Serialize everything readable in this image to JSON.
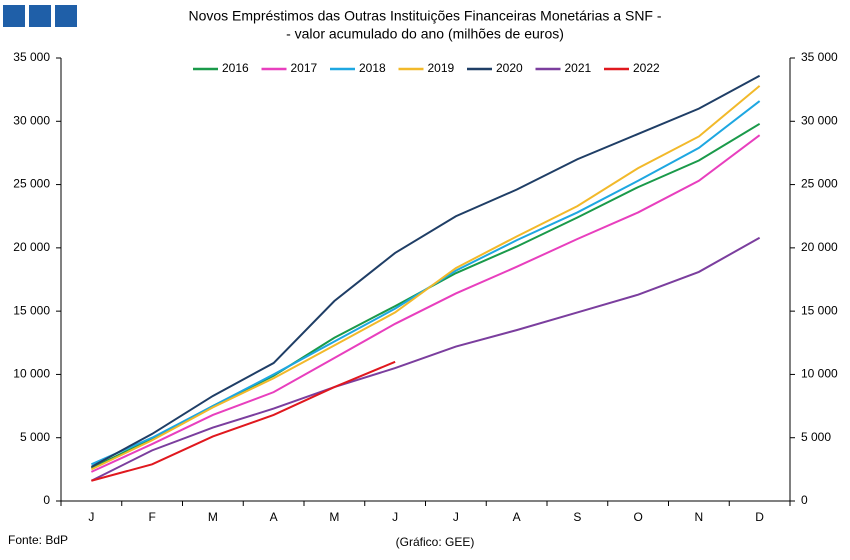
{
  "chart_data": {
    "type": "line",
    "title": "Novos Empréstimos das Outras Instituições Financeiras Monetárias a SNF -",
    "subtitle": "- valor acumulado do ano (milhões de euros)",
    "source": "Fonte: BdP",
    "credit": "(Gráfico: GEE)",
    "categories": [
      "J",
      "F",
      "M",
      "A",
      "M",
      "J",
      "J",
      "A",
      "S",
      "O",
      "N",
      "D"
    ],
    "series": [
      {
        "name": "2016",
        "color": "#1a9a4a",
        "values": [
          2600,
          4900,
          7500,
          9900,
          12900,
          15400,
          18000,
          20100,
          22400,
          24800,
          26900,
          29800
        ]
      },
      {
        "name": "2017",
        "color": "#e83fbe",
        "values": [
          2300,
          4500,
          6800,
          8600,
          11300,
          14000,
          16400,
          18500,
          20700,
          22800,
          25300,
          28900
        ]
      },
      {
        "name": "2018",
        "color": "#1ea7e1",
        "values": [
          2900,
          5000,
          7500,
          10000,
          12600,
          15200,
          18200,
          20600,
          22800,
          25300,
          27900,
          31600
        ]
      },
      {
        "name": "2019",
        "color": "#f2b92a",
        "values": [
          2500,
          4800,
          7400,
          9700,
          12300,
          14900,
          18400,
          20900,
          23300,
          26300,
          28800,
          32800
        ]
      },
      {
        "name": "2020",
        "color": "#1f3e66",
        "values": [
          2700,
          5300,
          8300,
          10900,
          15800,
          19600,
          22500,
          24600,
          27000,
          29000,
          31000,
          33600
        ]
      },
      {
        "name": "2021",
        "color": "#7b3e9e",
        "values": [
          1600,
          4000,
          5800,
          7300,
          9000,
          10500,
          12200,
          13500,
          14900,
          16300,
          18100,
          20800
        ]
      },
      {
        "name": "2022",
        "color": "#e0181e",
        "values": [
          1600,
          2900,
          5100,
          6800,
          9000,
          11000,
          null,
          null,
          null,
          null,
          null,
          null
        ]
      }
    ],
    "ylim": [
      0,
      35000
    ],
    "yticks": [
      0,
      {
        "value": 5000,
        "label": "5 000"
      },
      {
        "value": 10000,
        "label": "10 000"
      },
      {
        "value": 15000,
        "label": "15 000"
      },
      {
        "value": 20000,
        "label": "20 000"
      },
      {
        "value": 25000,
        "label": "25 000"
      },
      {
        "value": 30000,
        "label": "30 000"
      },
      {
        "value": 35000,
        "label": "35 000"
      }
    ],
    "y2lim": [
      0,
      35000
    ],
    "y2ticks": [
      0,
      {
        "value": 5000,
        "label": "5 000"
      },
      {
        "value": 10000,
        "label": "10 000"
      },
      {
        "value": 15000,
        "label": "15 000"
      },
      {
        "value": 20000,
        "label": "20 000"
      },
      {
        "value": 25000,
        "label": "25 000"
      },
      {
        "value": 30000,
        "label": "30 000"
      },
      {
        "value": 35000,
        "label": "35 000"
      }
    ],
    "legend": "top"
  }
}
